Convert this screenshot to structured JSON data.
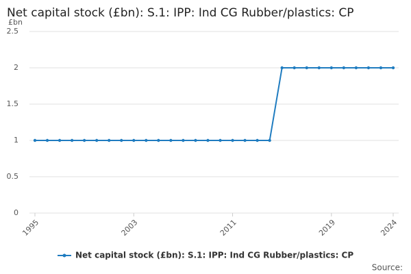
{
  "chart_data": {
    "type": "line",
    "title": "Net capital stock (£bn): S.1: IPP: Ind CG Rubber/plastics: CP",
    "y_unit": "£bn",
    "source": "Source:",
    "x": [
      1995,
      1996,
      1997,
      1998,
      1999,
      2000,
      2001,
      2002,
      2003,
      2004,
      2005,
      2006,
      2007,
      2008,
      2009,
      2010,
      2011,
      2012,
      2013,
      2014,
      2015,
      2016,
      2017,
      2018,
      2019,
      2020,
      2021,
      2022,
      2023,
      2024
    ],
    "series": [
      {
        "name": "Net capital stock (£bn): S.1: IPP: Ind CG Rubber/plastics: CP",
        "color": "#1f7cc0",
        "values": [
          1,
          1,
          1,
          1,
          1,
          1,
          1,
          1,
          1,
          1,
          1,
          1,
          1,
          1,
          1,
          1,
          1,
          1,
          1,
          1,
          2,
          2,
          2,
          2,
          2,
          2,
          2,
          2,
          2,
          2
        ]
      }
    ],
    "xlim": [
      1995,
      2024
    ],
    "xticks": [
      1995,
      2003,
      2011,
      2019,
      2024
    ],
    "ylim": [
      0,
      2.5
    ],
    "yticks": [
      0,
      0.5,
      1,
      1.5,
      2,
      2.5
    ],
    "grid": true
  }
}
